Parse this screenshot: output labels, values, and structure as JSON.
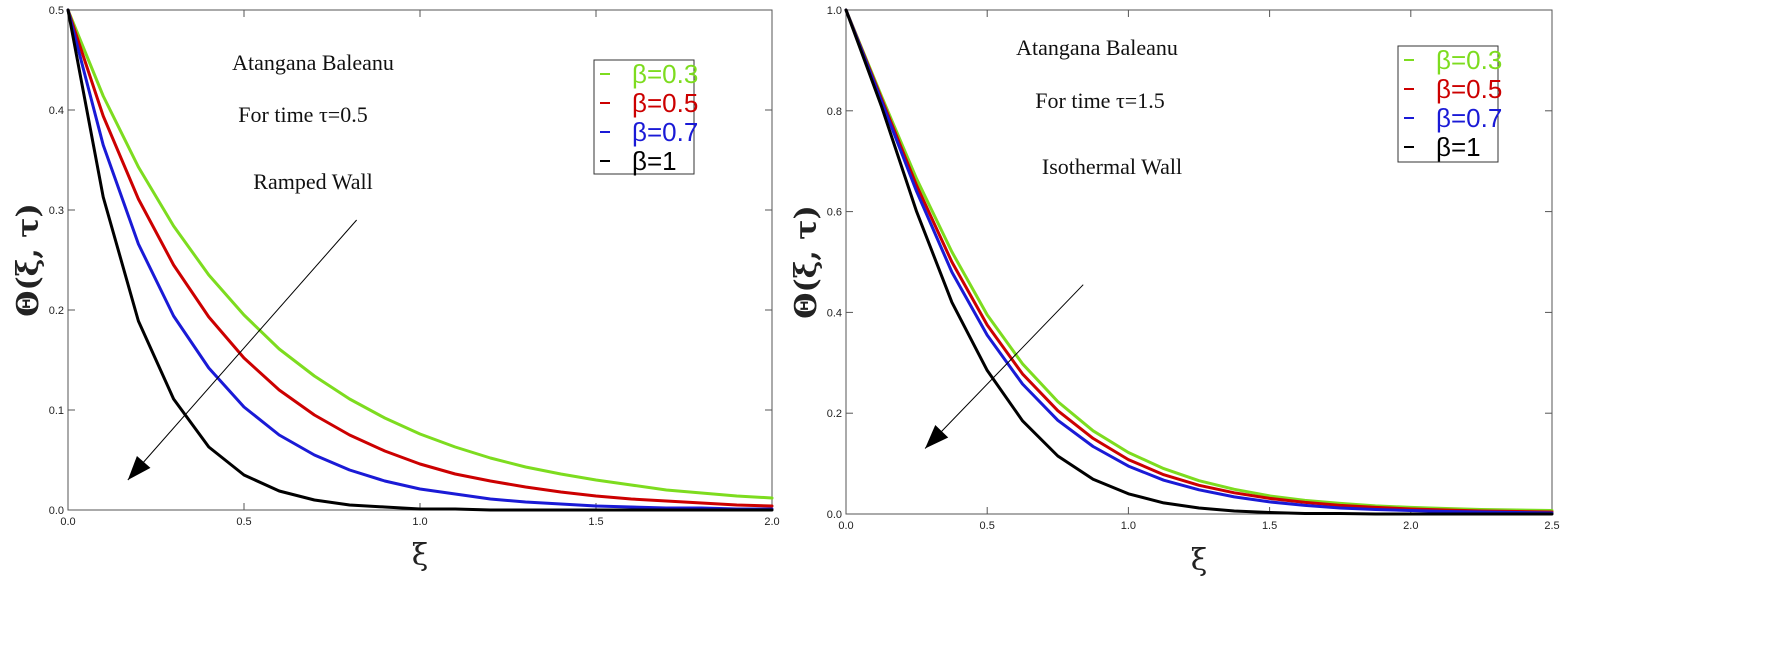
{
  "chart_data": [
    {
      "type": "line",
      "ylabel": "Θ(ξ, τ)",
      "xlabel": "ξ",
      "xlim": [
        0,
        2
      ],
      "ylim": [
        0,
        0.5
      ],
      "xticks": [
        "0.0",
        "0.5",
        "1.0",
        "1.5",
        "2.0"
      ],
      "yticks": [
        "0.0",
        "0.1",
        "0.2",
        "0.3",
        "0.4",
        "0.5"
      ],
      "annotations": [
        "Atangana Baleanu",
        "For time τ=0.5",
        "Ramped Wall"
      ],
      "legend_position": "top-right",
      "grid": false,
      "x": [
        0,
        0.1,
        0.2,
        0.3,
        0.4,
        0.5,
        0.6,
        0.7,
        0.8,
        0.9,
        1.0,
        1.1,
        1.2,
        1.3,
        1.4,
        1.5,
        1.6,
        1.7,
        1.8,
        1.9,
        2.0
      ],
      "series": [
        {
          "name": "β=0.3",
          "color": "#7ddc1f",
          "values": [
            0.5,
            0.414,
            0.343,
            0.284,
            0.235,
            0.195,
            0.161,
            0.134,
            0.111,
            0.092,
            0.076,
            0.063,
            0.052,
            0.043,
            0.036,
            0.03,
            0.025,
            0.02,
            0.017,
            0.014,
            0.012
          ]
        },
        {
          "name": "β=0.5",
          "color": "#cc0000",
          "values": [
            0.5,
            0.394,
            0.311,
            0.245,
            0.193,
            0.152,
            0.12,
            0.095,
            0.075,
            0.059,
            0.046,
            0.036,
            0.029,
            0.023,
            0.018,
            0.014,
            0.011,
            0.009,
            0.007,
            0.005,
            0.004
          ]
        },
        {
          "name": "β=0.7",
          "color": "#1a1ad6",
          "values": [
            0.5,
            0.365,
            0.266,
            0.194,
            0.142,
            0.103,
            0.075,
            0.055,
            0.04,
            0.029,
            0.021,
            0.016,
            0.011,
            0.008,
            0.006,
            0.004,
            0.003,
            0.002,
            0.002,
            0.001,
            0.001
          ]
        },
        {
          "name": "β=1",
          "color": "#000000",
          "values": [
            0.5,
            0.313,
            0.189,
            0.111,
            0.063,
            0.035,
            0.019,
            0.01,
            0.005,
            0.003,
            0.001,
            0.001,
            0,
            0,
            0,
            0,
            0,
            0,
            0,
            0,
            0
          ]
        }
      ],
      "arrow": {
        "from": [
          0.82,
          0.29
        ],
        "to": [
          0.17,
          0.03
        ]
      }
    },
    {
      "type": "line",
      "ylabel": "Θ(ξ, τ)",
      "xlabel": "ξ",
      "xlim": [
        0,
        2.5
      ],
      "ylim": [
        0,
        1.0
      ],
      "xticks": [
        "0.0",
        "0.5",
        "1.0",
        "1.5",
        "2.0",
        "2.5"
      ],
      "yticks": [
        "0.0",
        "0.2",
        "0.4",
        "0.6",
        "0.8",
        "1.0"
      ],
      "annotations": [
        "Atangana Baleanu",
        "For time τ=1.5",
        "Isothermal  Wall"
      ],
      "legend_position": "top-right",
      "grid": false,
      "x": [
        0,
        0.125,
        0.25,
        0.375,
        0.5,
        0.625,
        0.75,
        0.875,
        1.0,
        1.125,
        1.25,
        1.375,
        1.5,
        1.625,
        1.75,
        1.875,
        2.0,
        2.125,
        2.25,
        2.375,
        2.5
      ],
      "series": [
        {
          "name": "β=0.3",
          "color": "#7ddc1f",
          "values": [
            1.0,
            0.83,
            0.665,
            0.52,
            0.395,
            0.298,
            0.223,
            0.165,
            0.122,
            0.09,
            0.066,
            0.049,
            0.036,
            0.027,
            0.021,
            0.016,
            0.013,
            0.011,
            0.009,
            0.008,
            0.007
          ]
        },
        {
          "name": "β=0.5",
          "color": "#cc0000",
          "values": [
            1.0,
            0.825,
            0.652,
            0.5,
            0.375,
            0.278,
            0.205,
            0.15,
            0.108,
            0.078,
            0.057,
            0.042,
            0.031,
            0.023,
            0.017,
            0.013,
            0.01,
            0.008,
            0.006,
            0.005,
            0.004
          ]
        },
        {
          "name": "β=0.7",
          "color": "#1a1ad6",
          "values": [
            1.0,
            0.82,
            0.64,
            0.48,
            0.355,
            0.258,
            0.186,
            0.134,
            0.095,
            0.067,
            0.048,
            0.034,
            0.024,
            0.017,
            0.012,
            0.009,
            0.007,
            0.005,
            0.004,
            0.003,
            0.002
          ]
        },
        {
          "name": "β=1",
          "color": "#000000",
          "values": [
            1.0,
            0.81,
            0.6,
            0.42,
            0.285,
            0.185,
            0.115,
            0.069,
            0.04,
            0.022,
            0.012,
            0.006,
            0.003,
            0.001,
            0.001,
            0,
            0,
            0,
            0,
            0,
            0
          ]
        }
      ],
      "arrow": {
        "from": [
          0.84,
          0.455
        ],
        "to": [
          0.28,
          0.13
        ]
      }
    }
  ]
}
